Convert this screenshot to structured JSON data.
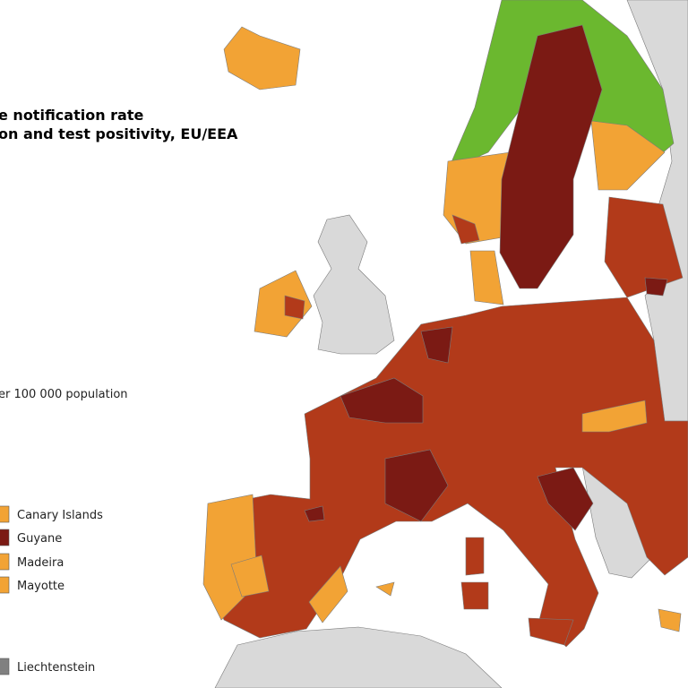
{
  "title": "e notification rate",
  "subtitle": "on and test positivity, EU/EEA",
  "legend_title": "er 100 000 population",
  "legend": [
    {
      "name": "Canary Islands",
      "color": "#f2a335"
    },
    {
      "name": "Guyane",
      "color": "#7b1a14"
    },
    {
      "name": "Madeira",
      "color": "#f2a335"
    },
    {
      "name": "Mayotte",
      "color": "#f2a335"
    },
    {
      "name": "Liechtenstein",
      "color": "#808080"
    }
  ]
}
